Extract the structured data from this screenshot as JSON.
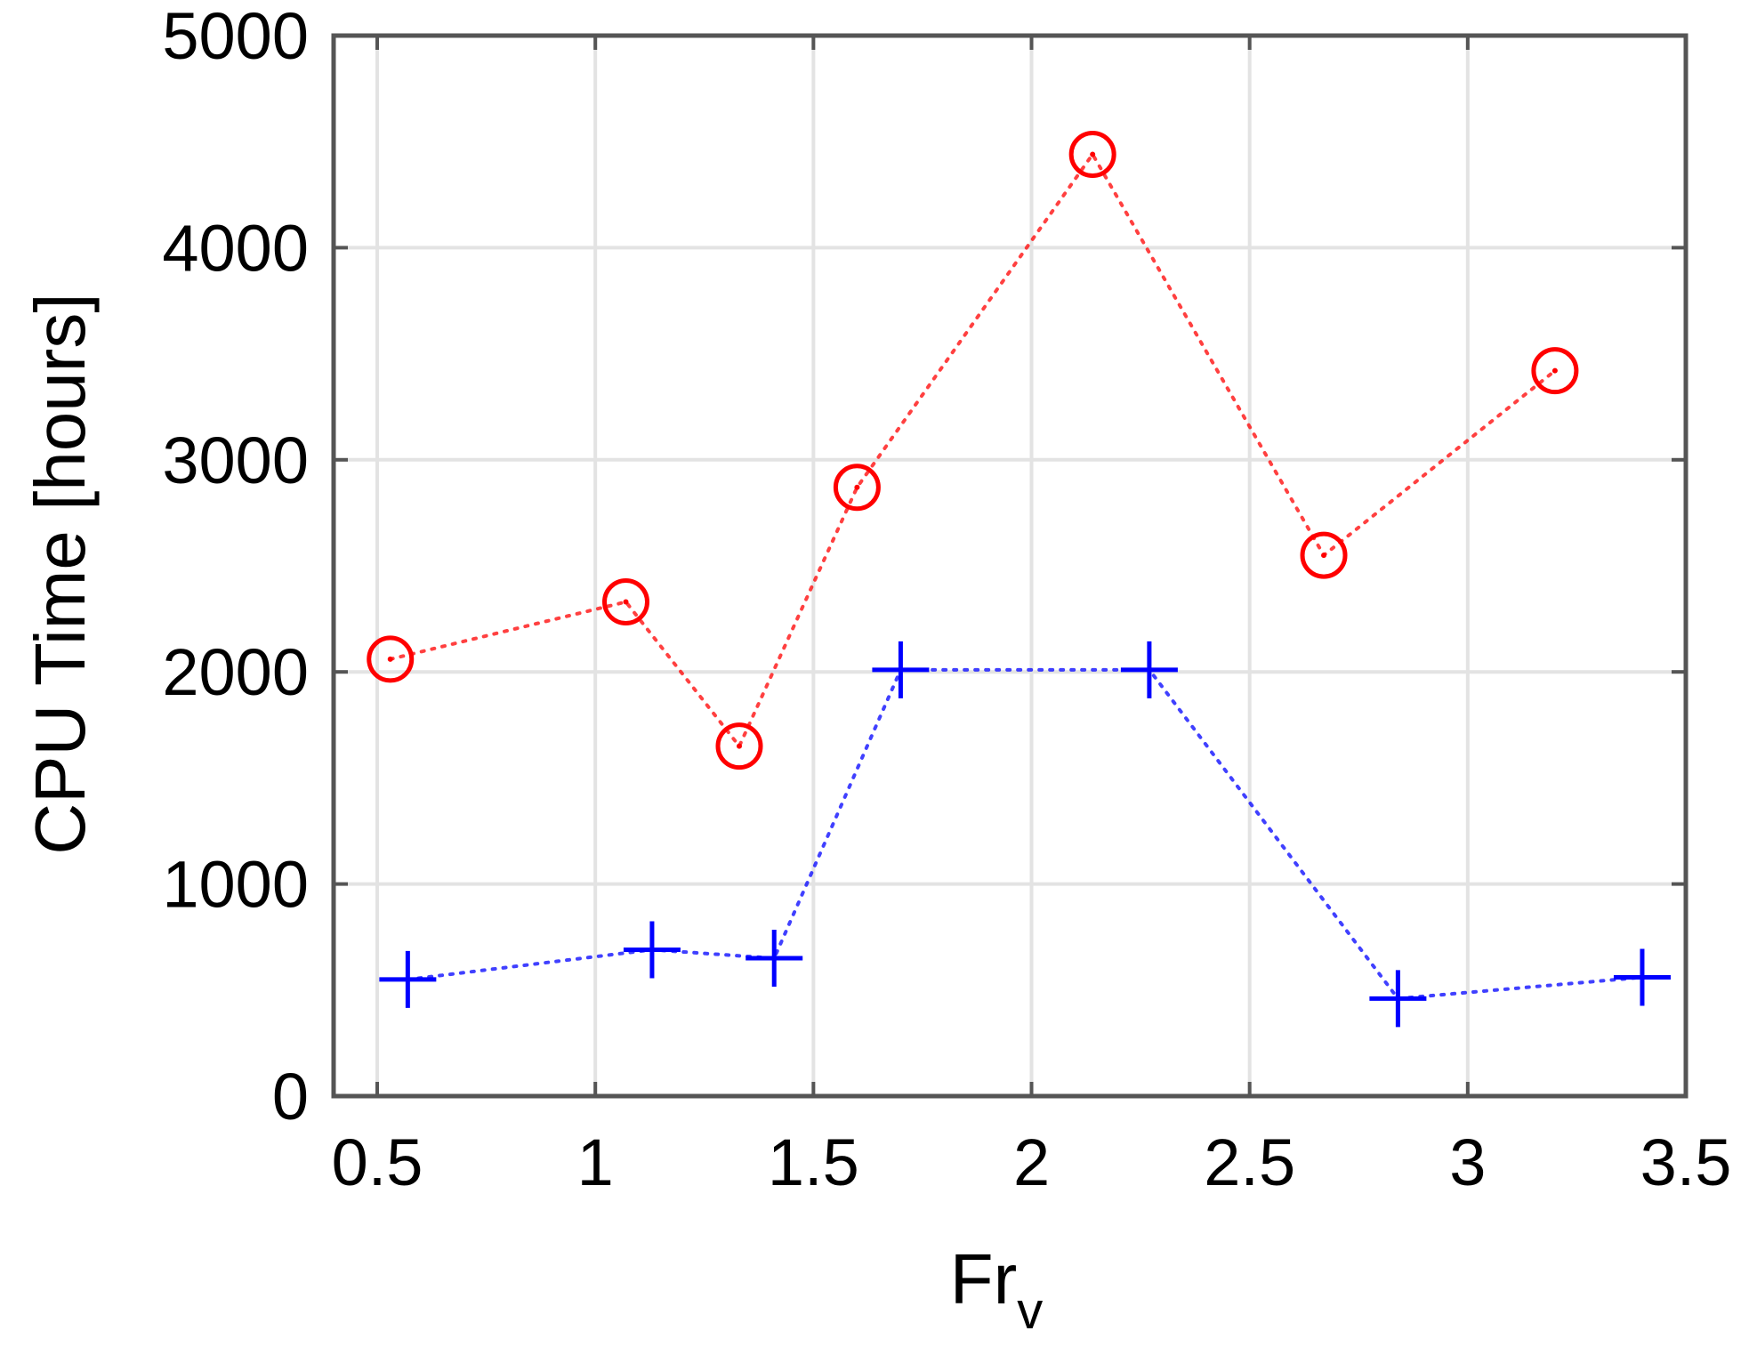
{
  "chart_data": {
    "type": "line",
    "xlabel": {
      "main": "Fr",
      "sub": "v"
    },
    "ylabel": "CPU Time [hours]",
    "xlim": [
      0.4,
      3.5
    ],
    "ylim": [
      0,
      5000
    ],
    "xticks": [
      0.5,
      1,
      1.5,
      2,
      2.5,
      3,
      3.5
    ],
    "xtick_labels": [
      "0.5",
      "1",
      "1.5",
      "2",
      "2.5",
      "3",
      "3.5"
    ],
    "yticks": [
      0,
      1000,
      2000,
      3000,
      4000,
      5000
    ],
    "ytick_labels": [
      "0",
      "1000",
      "2000",
      "3000",
      "4000",
      "5000"
    ],
    "grid": true,
    "series": [
      {
        "marker": "circle",
        "line_style": "dotted",
        "color": "#ff0000",
        "x": [
          0.53,
          1.07,
          1.33,
          1.6,
          2.14,
          2.67,
          3.2
        ],
        "y": [
          2060,
          2330,
          1650,
          2870,
          4440,
          2550,
          3420
        ]
      },
      {
        "marker": "plus",
        "line_style": "dotted",
        "color": "#0000ff",
        "x": [
          0.57,
          1.13,
          1.41,
          1.7,
          2.27,
          2.84,
          3.4
        ],
        "y": [
          550,
          690,
          650,
          2010,
          2010,
          460,
          560
        ]
      }
    ]
  }
}
